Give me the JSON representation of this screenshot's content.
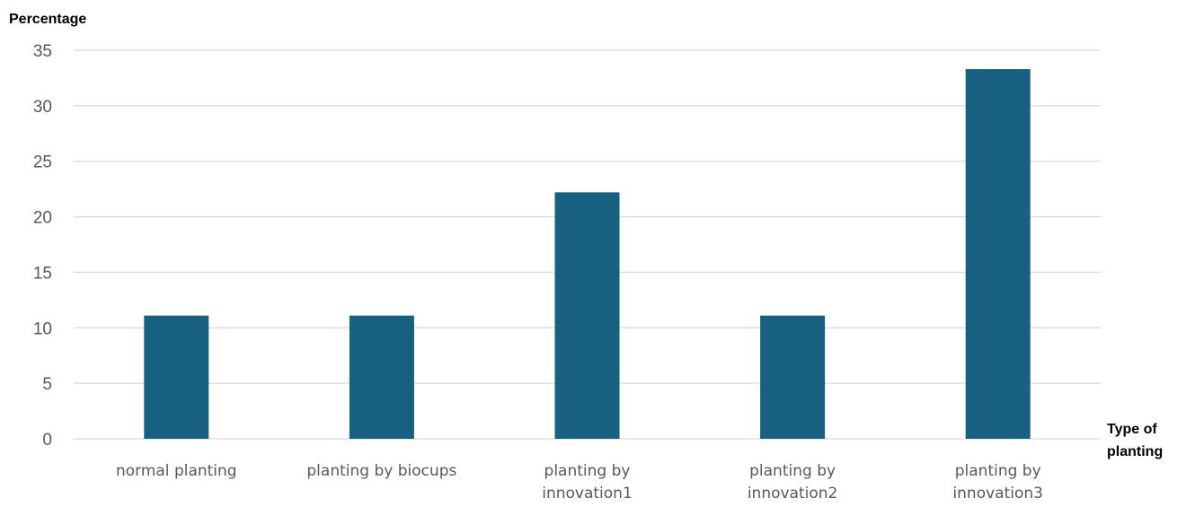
{
  "chart_data": {
    "type": "bar",
    "title": "",
    "ylabel": "Percentage",
    "xlabel": [
      "Type of",
      "planting"
    ],
    "categories": [
      [
        "normal planting"
      ],
      [
        "planting by biocups"
      ],
      [
        "planting by",
        "innovation1"
      ],
      [
        "planting by",
        "innovation2"
      ],
      [
        "planting by",
        "innovation3"
      ]
    ],
    "values": [
      11.1,
      11.1,
      22.2,
      11.1,
      33.3
    ],
    "ylim": [
      0,
      35
    ],
    "yticks": [
      0,
      5,
      10,
      15,
      20,
      25,
      30,
      35
    ],
    "grid": true,
    "legend": "none",
    "colors": {
      "bar": "#17607f",
      "grid": "#d9d9d9",
      "tick_text": "#595959"
    }
  }
}
